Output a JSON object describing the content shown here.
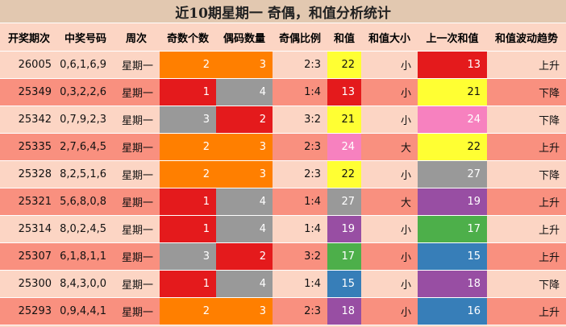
{
  "title": "近10期星期一 奇偶，和值分析统计",
  "table": {
    "columns": [
      "开奖期次",
      "中奖号码",
      "周次",
      "奇数个数",
      "偶码数量",
      "奇偶比例",
      "和值",
      "和值大小",
      "上一次和值",
      "和值波动趋势"
    ],
    "highlight_columns": [
      3,
      4,
      6,
      8
    ],
    "row_colors": [
      "#fcd5c4",
      "#f9907f"
    ],
    "rows": [
      {
        "cells": [
          "26005",
          "0,6,1,6,9",
          "星期一",
          "2",
          "3",
          "2:3",
          "22",
          "小",
          "13",
          "上升"
        ],
        "highlights": [
          "#ff7f00",
          "#ff7f00",
          "#ffff33",
          "#e41a1c"
        ]
      },
      {
        "cells": [
          "25349",
          "0,3,2,2,6",
          "星期一",
          "1",
          "4",
          "1:4",
          "13",
          "小",
          "21",
          "下降"
        ],
        "highlights": [
          "#e41a1c",
          "#999999",
          "#e41a1c",
          "#ffff33"
        ]
      },
      {
        "cells": [
          "25342",
          "0,7,9,2,3",
          "星期一",
          "3",
          "2",
          "3:2",
          "21",
          "小",
          "24",
          "下降"
        ],
        "highlights": [
          "#999999",
          "#e41a1c",
          "#ffff33",
          "#f781bf"
        ]
      },
      {
        "cells": [
          "25335",
          "2,7,6,4,5",
          "星期一",
          "2",
          "3",
          "2:3",
          "24",
          "大",
          "22",
          "上升"
        ],
        "highlights": [
          "#ff7f00",
          "#ff7f00",
          "#f781bf",
          "#ffff33"
        ]
      },
      {
        "cells": [
          "25328",
          "8,2,5,1,6",
          "星期一",
          "2",
          "3",
          "2:3",
          "22",
          "小",
          "27",
          "下降"
        ],
        "highlights": [
          "#ff7f00",
          "#ff7f00",
          "#ffff33",
          "#999999"
        ]
      },
      {
        "cells": [
          "25321",
          "5,6,8,0,8",
          "星期一",
          "1",
          "4",
          "1:4",
          "27",
          "大",
          "19",
          "上升"
        ],
        "highlights": [
          "#e41a1c",
          "#999999",
          "#999999",
          "#984ea3"
        ]
      },
      {
        "cells": [
          "25314",
          "8,0,2,4,5",
          "星期一",
          "1",
          "4",
          "1:4",
          "19",
          "小",
          "17",
          "上升"
        ],
        "highlights": [
          "#e41a1c",
          "#999999",
          "#984ea3",
          "#4daf4a"
        ]
      },
      {
        "cells": [
          "25307",
          "6,1,8,1,1",
          "星期一",
          "3",
          "2",
          "3:2",
          "17",
          "小",
          "15",
          "上升"
        ],
        "highlights": [
          "#999999",
          "#e41a1c",
          "#4daf4a",
          "#377eb8"
        ]
      },
      {
        "cells": [
          "25300",
          "8,4,3,0,0",
          "星期一",
          "1",
          "4",
          "1:4",
          "15",
          "小",
          "18",
          "下降"
        ],
        "highlights": [
          "#e41a1c",
          "#999999",
          "#377eb8",
          "#984ea3"
        ]
      },
      {
        "cells": [
          "25293",
          "0,9,4,4,1",
          "星期一",
          "2",
          "3",
          "2:3",
          "18",
          "小",
          "16",
          "上升"
        ],
        "highlights": [
          "#ff7f00",
          "#ff7f00",
          "#984ea3",
          "#377eb8"
        ]
      }
    ]
  }
}
